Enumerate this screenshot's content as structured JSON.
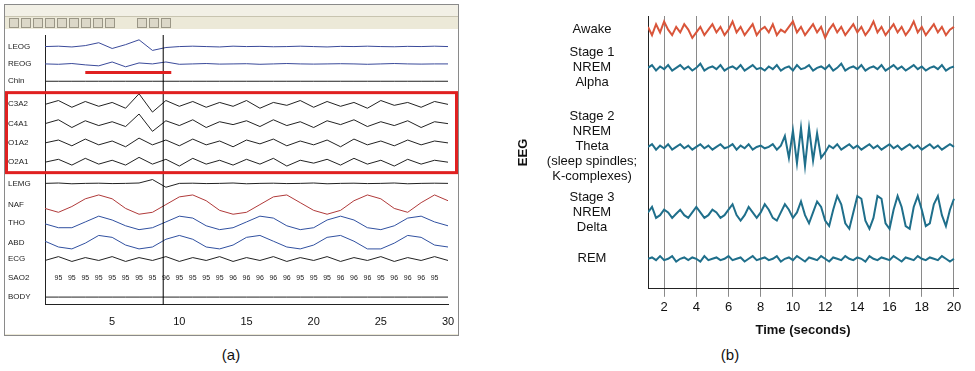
{
  "chart_data": [
    {
      "type": "line",
      "panel": "(a)",
      "x": [
        0,
        1,
        2,
        3,
        4,
        5,
        6,
        7,
        8,
        9,
        10,
        11,
        12,
        13,
        14,
        15,
        16,
        17,
        18,
        19,
        20,
        21,
        22,
        23,
        24,
        25,
        26,
        27,
        28,
        29,
        30
      ],
      "xlim": [
        0,
        30
      ],
      "xticks": [
        5,
        10,
        15,
        20,
        25,
        30
      ],
      "ylim": [
        0,
        14
      ],
      "yticks": [],
      "tick_labels": "x",
      "grid": false,
      "series": [
        {
          "name": "LEOG",
          "color": "#3a4a9a",
          "values": [
            13.4,
            13.42,
            13.38,
            13.45,
            13.6,
            13.3,
            13.5,
            13.75,
            13.2,
            13.35,
            13.4,
            13.42,
            13.4,
            13.38,
            13.42,
            13.4,
            13.41,
            13.39,
            13.4,
            13.42,
            13.4,
            13.38,
            13.41,
            13.4,
            13.42,
            13.4,
            13.39,
            13.41,
            13.4,
            13.42,
            13.4
          ]
        },
        {
          "name": "REOG",
          "color": "#3a4a9a",
          "values": [
            12.5,
            12.48,
            12.52,
            12.45,
            12.4,
            12.6,
            12.35,
            12.55,
            12.5,
            12.6,
            12.48,
            12.5,
            12.52,
            12.49,
            12.5,
            12.51,
            12.48,
            12.5,
            12.52,
            12.5,
            12.49,
            12.5,
            12.51,
            12.5,
            12.48,
            12.5,
            12.52,
            12.5,
            12.49,
            12.5,
            12.5
          ]
        },
        {
          "name": "Chin",
          "color": "#222222",
          "values": [
            11.6,
            11.6,
            11.6,
            11.6,
            11.6,
            11.6,
            11.6,
            11.6,
            11.6,
            11.6,
            11.6,
            11.6,
            11.6,
            11.6,
            11.6,
            11.6,
            11.6,
            11.6,
            11.6,
            11.6,
            11.6,
            11.6,
            11.6,
            11.6,
            11.6,
            11.6,
            11.6,
            11.6,
            11.6,
            11.6,
            11.6
          ]
        },
        {
          "name": "C3A2",
          "color": "#222222",
          "values": [
            10.4,
            10.6,
            10.25,
            10.55,
            10.3,
            10.5,
            10.2,
            10.95,
            10.0,
            10.6,
            10.3,
            10.55,
            10.25,
            10.5,
            10.3,
            10.6,
            10.2,
            10.5,
            10.35,
            10.6,
            10.25,
            10.55,
            10.3,
            10.5,
            10.2,
            10.6,
            10.35,
            10.5,
            10.25,
            10.55,
            10.4
          ]
        },
        {
          "name": "C4A1",
          "color": "#222222",
          "values": [
            9.4,
            9.6,
            9.2,
            9.55,
            9.3,
            9.5,
            9.25,
            9.9,
            9.0,
            9.55,
            9.3,
            9.6,
            9.2,
            9.5,
            9.35,
            9.55,
            9.25,
            9.6,
            9.3,
            9.5,
            9.2,
            9.55,
            9.35,
            9.6,
            9.25,
            9.5,
            9.3,
            9.55,
            9.2,
            9.5,
            9.4
          ]
        },
        {
          "name": "O1A2",
          "color": "#222222",
          "values": [
            8.4,
            8.55,
            8.25,
            8.6,
            8.3,
            8.5,
            8.2,
            8.65,
            8.3,
            8.55,
            8.25,
            8.6,
            8.3,
            8.5,
            8.2,
            8.55,
            8.35,
            8.6,
            8.25,
            8.5,
            8.3,
            8.55,
            8.2,
            8.6,
            8.3,
            8.5,
            8.25,
            8.55,
            8.3,
            8.5,
            8.4
          ]
        },
        {
          "name": "O2A1",
          "color": "#222222",
          "values": [
            7.4,
            7.55,
            7.25,
            7.6,
            7.3,
            7.5,
            7.25,
            7.65,
            7.3,
            7.55,
            7.2,
            7.6,
            7.3,
            7.5,
            7.25,
            7.55,
            7.3,
            7.6,
            7.2,
            7.5,
            7.35,
            7.55,
            7.25,
            7.6,
            7.3,
            7.5,
            7.2,
            7.55,
            7.3,
            7.5,
            7.4
          ]
        },
        {
          "name": "LEMG",
          "color": "#222222",
          "values": [
            6.3,
            6.32,
            6.28,
            6.3,
            6.31,
            6.29,
            6.3,
            6.32,
            6.5,
            6.1,
            6.3,
            6.31,
            6.29,
            6.3,
            6.32,
            6.28,
            6.3,
            6.31,
            6.29,
            6.3,
            6.32,
            6.28,
            6.3,
            6.31,
            6.29,
            6.3,
            6.32,
            6.28,
            6.3,
            6.31,
            6.3
          ]
        },
        {
          "name": "NAF",
          "color": "#b03a3a",
          "values": [
            5.0,
            4.8,
            5.1,
            5.5,
            5.7,
            5.5,
            5.0,
            4.7,
            4.8,
            5.2,
            5.6,
            5.7,
            5.4,
            4.9,
            4.7,
            4.8,
            5.2,
            5.6,
            5.7,
            5.3,
            4.9,
            4.7,
            4.9,
            5.4,
            5.7,
            5.5,
            5.0,
            4.8,
            5.3,
            5.7,
            5.4
          ]
        },
        {
          "name": "THO",
          "color": "#3050a0",
          "values": [
            4.2,
            4.0,
            4.0,
            4.3,
            4.6,
            4.4,
            4.1,
            3.9,
            4.0,
            4.3,
            4.6,
            4.5,
            4.1,
            3.9,
            4.0,
            4.3,
            4.6,
            4.5,
            4.1,
            3.9,
            4.0,
            4.4,
            4.6,
            4.4,
            4.0,
            3.9,
            4.1,
            4.5,
            4.6,
            4.3,
            4.1
          ]
        },
        {
          "name": "ABD",
          "color": "#3050a0",
          "values": [
            3.3,
            3.0,
            2.9,
            3.2,
            3.6,
            3.5,
            3.1,
            2.9,
            3.0,
            3.4,
            3.6,
            3.4,
            3.0,
            2.9,
            3.1,
            3.5,
            3.6,
            3.3,
            3.0,
            2.9,
            3.1,
            3.5,
            3.6,
            3.3,
            2.9,
            2.9,
            3.2,
            3.6,
            3.5,
            3.1,
            3.0
          ]
        },
        {
          "name": "ECG",
          "color": "#222222",
          "values": [
            2.3,
            2.5,
            2.25,
            2.45,
            2.3,
            2.5,
            2.25,
            2.45,
            2.3,
            2.5,
            2.25,
            2.45,
            2.3,
            2.5,
            2.25,
            2.45,
            2.3,
            2.5,
            2.25,
            2.45,
            2.3,
            2.5,
            2.25,
            2.45,
            2.3,
            2.5,
            2.25,
            2.45,
            2.3,
            2.5,
            2.3
          ]
        },
        {
          "name": "BODY",
          "color": "#222222",
          "values": [
            0.4,
            0.4,
            0.4,
            0.4,
            0.4,
            0.4,
            0.4,
            0.4,
            0.4,
            0.4,
            0.4,
            0.4,
            0.4,
            0.4,
            0.4,
            0.4,
            0.4,
            0.4,
            0.4,
            0.4,
            0.4,
            0.4,
            0.4,
            0.4,
            0.4,
            0.4,
            0.4,
            0.4,
            0.4,
            0.4,
            0.4
          ]
        }
      ],
      "sao2": {
        "name": "SAO2",
        "x": [
          1,
          2,
          3,
          4,
          5,
          6,
          7,
          8,
          9,
          10,
          11,
          12,
          13,
          14,
          15,
          16,
          17,
          18,
          19,
          20,
          21,
          22,
          23,
          24,
          25,
          26,
          27,
          28,
          29
        ],
        "values": [
          95,
          95,
          95,
          95,
          95,
          95,
          95,
          95,
          96,
          95,
          95,
          95,
          95,
          96,
          96,
          96,
          96,
          96,
          95,
          95,
          95,
          96,
          96,
          96,
          95,
          96,
          96,
          96,
          95
        ]
      },
      "highlighted_channels": [
        "C3A2",
        "C4A1",
        "O1A2",
        "O2A1"
      ],
      "marked_span": {
        "channel": "REOG",
        "x": [
          3,
          9.4
        ]
      },
      "cursor": 8.8
    },
    {
      "type": "line",
      "panel": "(b)",
      "x_label": "Time (seconds)",
      "y_label": "EEG",
      "x": [
        1,
        1.25,
        1.5,
        1.75,
        2,
        2.25,
        2.5,
        2.75,
        3,
        3.25,
        3.5,
        3.75,
        4,
        4.25,
        4.5,
        4.75,
        5,
        5.25,
        5.5,
        5.75,
        6,
        6.25,
        6.5,
        6.75,
        7,
        7.25,
        7.5,
        7.75,
        8,
        8.25,
        8.5,
        8.75,
        9,
        9.25,
        9.5,
        9.75,
        10,
        10.25,
        10.5,
        10.75,
        11,
        11.25,
        11.5,
        11.75,
        12,
        12.25,
        12.5,
        12.75,
        13,
        13.25,
        13.5,
        13.75,
        14,
        14.25,
        14.5,
        14.75,
        15,
        15.25,
        15.5,
        15.75,
        16,
        16.25,
        16.5,
        16.75,
        17,
        17.25,
        17.5,
        17.75,
        18,
        18.25,
        18.5,
        18.75,
        19,
        19.25,
        19.5,
        19.75,
        20
      ],
      "xlim": [
        1,
        20.25
      ],
      "xticks": [
        2,
        4,
        6,
        8,
        10,
        12,
        14,
        16,
        18,
        20
      ],
      "ylim": [
        0,
        10
      ],
      "yticks": [],
      "tick_labels": "x",
      "grid": true,
      "series": [
        {
          "name": [
            "Awake"
          ],
          "color": "#d9553a",
          "values": [
            9.6,
            9.3,
            9.7,
            9.4,
            9.8,
            9.5,
            9.3,
            9.6,
            9.4,
            9.7,
            9.5,
            9.2,
            9.4,
            9.6,
            9.3,
            9.5,
            9.7,
            9.4,
            9.6,
            9.3,
            9.5,
            9.8,
            9.4,
            9.6,
            9.3,
            9.5,
            9.7,
            9.3,
            9.5,
            9.6,
            9.4,
            9.7,
            9.3,
            9.5,
            9.4,
            9.6,
            9.8,
            9.4,
            9.6,
            9.3,
            9.5,
            9.7,
            9.4,
            9.6,
            9.2,
            9.5,
            9.7,
            9.4,
            9.6,
            9.3,
            9.5,
            9.7,
            9.4,
            9.6,
            9.3,
            9.5,
            9.8,
            9.4,
            9.6,
            9.3,
            9.5,
            9.7,
            9.4,
            9.6,
            9.3,
            9.5,
            9.8,
            9.4,
            9.6,
            9.3,
            9.5,
            9.7,
            9.4,
            9.6,
            9.3,
            9.5,
            9.6
          ]
        },
        {
          "name": [
            "Stage 1",
            "NREM",
            "Alpha"
          ],
          "color": "#1f6f8b",
          "values": [
            8.1,
            8.2,
            8.0,
            8.15,
            8.05,
            8.2,
            8.0,
            8.1,
            8.2,
            8.05,
            8.15,
            8.0,
            8.1,
            8.25,
            8.0,
            8.1,
            8.15,
            8.05,
            8.2,
            8.0,
            8.1,
            8.15,
            8.05,
            8.2,
            8.0,
            8.1,
            8.2,
            8.05,
            8.1,
            8.0,
            8.15,
            8.05,
            8.2,
            8.0,
            8.1,
            8.15,
            8.0,
            8.2,
            8.05,
            8.1,
            8.2,
            8.0,
            8.1,
            8.15,
            8.05,
            8.2,
            8.0,
            8.1,
            8.25,
            8.0,
            8.1,
            8.15,
            8.05,
            8.2,
            8.0,
            8.1,
            8.15,
            8.05,
            8.2,
            8.0,
            8.1,
            8.2,
            8.05,
            8.15,
            8.0,
            8.1,
            8.2,
            8.05,
            8.15,
            8.0,
            8.1,
            8.15,
            8.05,
            8.2,
            8.0,
            8.1,
            8.15
          ]
        },
        {
          "name": [
            "Stage 2",
            "NREM",
            "Theta",
            "(sleep spindles;",
            "K-complexes)"
          ],
          "color": "#1f6f8b",
          "values": [
            5.2,
            5.3,
            5.1,
            5.25,
            5.15,
            5.3,
            5.1,
            5.2,
            5.3,
            5.15,
            5.25,
            5.1,
            5.2,
            5.3,
            5.15,
            5.25,
            5.1,
            5.2,
            5.3,
            5.15,
            5.2,
            5.3,
            5.1,
            5.25,
            5.15,
            5.3,
            5.1,
            5.2,
            5.25,
            5.15,
            5.2,
            5.3,
            5.1,
            5.25,
            5.6,
            4.8,
            5.8,
            4.6,
            5.9,
            4.5,
            5.9,
            4.7,
            5.7,
            4.8,
            5.0,
            5.25,
            5.15,
            5.3,
            5.1,
            5.2,
            5.3,
            5.15,
            5.25,
            5.1,
            5.2,
            5.3,
            5.15,
            5.25,
            5.1,
            5.2,
            5.3,
            5.15,
            5.25,
            5.1,
            5.2,
            5.3,
            5.15,
            5.25,
            5.1,
            5.2,
            5.3,
            5.15,
            5.25,
            5.1,
            5.2,
            5.3,
            5.2
          ]
        },
        {
          "name": [
            "Stage 3",
            "NREM",
            "Delta"
          ],
          "color": "#1f6f8b",
          "values": [
            2.8,
            3.0,
            2.6,
            2.7,
            2.9,
            2.8,
            2.6,
            2.75,
            2.9,
            2.7,
            2.6,
            2.8,
            3.0,
            2.8,
            2.6,
            2.7,
            2.9,
            2.8,
            2.6,
            2.7,
            2.9,
            3.1,
            2.7,
            2.5,
            2.7,
            3.0,
            2.8,
            2.6,
            2.8,
            3.1,
            2.9,
            2.6,
            2.5,
            2.8,
            3.1,
            2.9,
            2.6,
            2.8,
            3.2,
            2.7,
            2.4,
            2.8,
            3.2,
            3.0,
            2.5,
            2.3,
            2.9,
            3.4,
            3.1,
            2.4,
            2.2,
            2.8,
            3.4,
            3.3,
            2.5,
            2.2,
            2.6,
            3.4,
            3.3,
            2.4,
            2.2,
            2.9,
            3.4,
            3.0,
            2.3,
            2.2,
            3.0,
            3.4,
            2.9,
            2.3,
            2.4,
            3.1,
            3.4,
            2.7,
            2.3,
            2.9,
            3.3
          ]
        },
        {
          "name": [
            "REM"
          ],
          "color": "#1f6f8b",
          "values": [
            1.1,
            1.15,
            1.05,
            1.2,
            1.05,
            1.1,
            1.2,
            1.0,
            1.1,
            1.15,
            1.05,
            1.15,
            1.1,
            1.0,
            1.2,
            1.05,
            1.1,
            1.15,
            1.05,
            1.1,
            1.2,
            1.05,
            1.1,
            1.15,
            1.0,
            1.1,
            1.2,
            1.05,
            1.1,
            1.15,
            1.05,
            1.1,
            1.2,
            1.0,
            1.1,
            1.15,
            1.05,
            1.2,
            1.1,
            1.0,
            1.15,
            1.1,
            1.05,
            1.2,
            1.1,
            1.0,
            1.15,
            1.1,
            1.05,
            1.2,
            1.1,
            1.05,
            1.15,
            1.1,
            1.0,
            1.2,
            1.1,
            1.05,
            1.15,
            1.1,
            1.05,
            1.2,
            1.1,
            1.0,
            1.15,
            1.1,
            1.05,
            1.2,
            1.1,
            1.05,
            1.15,
            1.1,
            1.05,
            1.2,
            1.1,
            1.0,
            1.1
          ]
        }
      ]
    }
  ]
}
